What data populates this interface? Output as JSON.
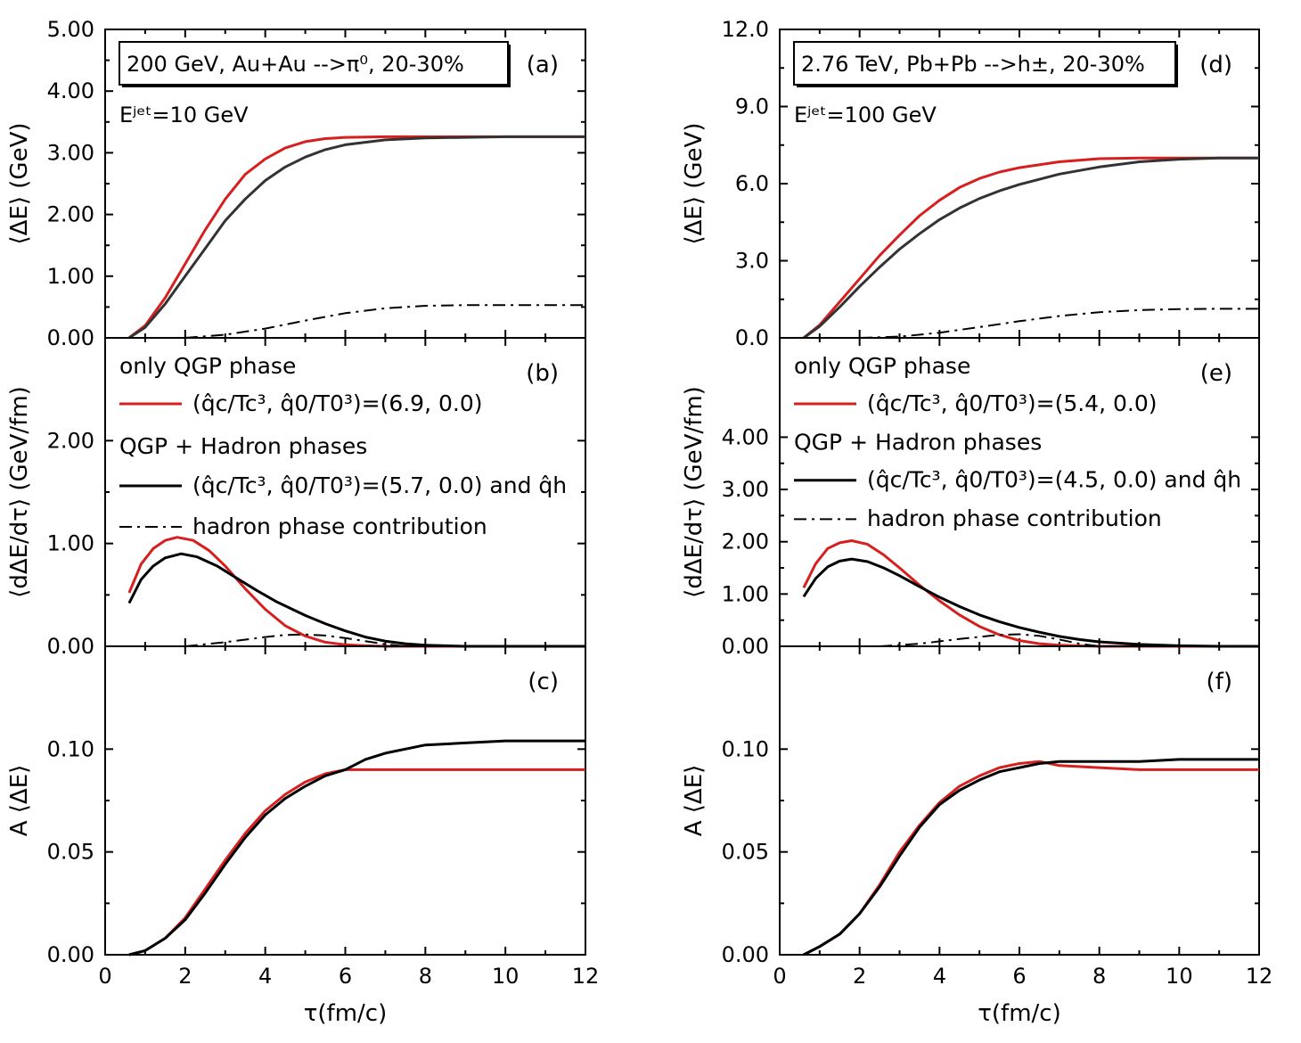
{
  "colors": {
    "red": "#d62020",
    "black": "#000000",
    "dark": "#333333"
  },
  "chart_data": [
    {
      "panel": "(a)",
      "type": "line",
      "column": "left",
      "row": 0,
      "ylabel": "⟨ΔE⟩ (GeV)",
      "ylim": [
        0,
        5
      ],
      "yticks": [
        0,
        1,
        2,
        3,
        4,
        5
      ],
      "ytick_labels": [
        "0.00",
        "1.00",
        "2.00",
        "3.00",
        "4.00",
        "5.00"
      ],
      "xlim": [
        0,
        12
      ],
      "box_text": "200 GeV, Au+Au -->π⁰, 20-30%",
      "note_text": "Eʲᵉᵗ=10 GeV",
      "series": [
        {
          "name": "only QGP phase",
          "color": "red",
          "style": "solid",
          "x": [
            0.6,
            1,
            1.5,
            2,
            2.5,
            3,
            3.5,
            4,
            4.5,
            5,
            5.5,
            6,
            7,
            8,
            9,
            10,
            11,
            12
          ],
          "y": [
            0,
            0.2,
            0.65,
            1.2,
            1.75,
            2.25,
            2.65,
            2.9,
            3.08,
            3.18,
            3.23,
            3.25,
            3.26,
            3.26,
            3.26,
            3.26,
            3.26,
            3.26
          ]
        },
        {
          "name": "QGP + Hadron phases",
          "color": "dark",
          "style": "solid",
          "x": [
            0.6,
            1,
            1.5,
            2,
            2.5,
            3,
            3.5,
            4,
            4.5,
            5,
            5.5,
            6,
            7,
            8,
            9,
            10,
            11,
            12
          ],
          "y": [
            0,
            0.17,
            0.55,
            1.0,
            1.45,
            1.9,
            2.25,
            2.55,
            2.77,
            2.93,
            3.05,
            3.13,
            3.21,
            3.24,
            3.25,
            3.26,
            3.26,
            3.26
          ]
        },
        {
          "name": "hadron phase contribution",
          "color": "black",
          "style": "dashdot",
          "x": [
            2,
            3,
            4,
            5,
            6,
            7,
            8,
            9,
            10,
            11,
            12
          ],
          "y": [
            0,
            0.05,
            0.15,
            0.28,
            0.4,
            0.48,
            0.52,
            0.53,
            0.53,
            0.53,
            0.53
          ]
        }
      ]
    },
    {
      "panel": "(b)",
      "type": "line",
      "column": "left",
      "row": 1,
      "ylabel": "⟨dΔE/dτ⟩ (GeV/fm)",
      "ylim": [
        0,
        3
      ],
      "yticks": [
        0,
        1,
        2
      ],
      "ytick_labels": [
        "0.00",
        "1.00",
        "2.00"
      ],
      "xlim": [
        0,
        12
      ],
      "legend": {
        "group1": "only QGP phase",
        "entry1": "(q̂c/Tc³, q̂0/T0³)=(6.9, 0.0)",
        "group2": "QGP + Hadron phases",
        "entry2": "(q̂c/Tc³, q̂0/T0³)=(5.7, 0.0) and q̂h",
        "entry3": "hadron phase contribution"
      },
      "series": [
        {
          "name": "only QGP phase",
          "color": "red",
          "style": "solid",
          "x": [
            0.6,
            0.9,
            1.2,
            1.5,
            1.8,
            2.2,
            2.6,
            3,
            3.5,
            4,
            4.5,
            5,
            5.5,
            6,
            6.5,
            7,
            12
          ],
          "y": [
            0.52,
            0.8,
            0.95,
            1.03,
            1.06,
            1.03,
            0.93,
            0.78,
            0.56,
            0.36,
            0.2,
            0.1,
            0.04,
            0.015,
            0.005,
            0,
            0
          ]
        },
        {
          "name": "QGP + Hadron phases",
          "color": "black",
          "style": "solid",
          "x": [
            0.6,
            0.9,
            1.2,
            1.5,
            1.9,
            2.3,
            2.8,
            3.3,
            3.8,
            4.3,
            5,
            5.5,
            6,
            6.5,
            7,
            7.5,
            8,
            9,
            12
          ],
          "y": [
            0.42,
            0.65,
            0.78,
            0.86,
            0.9,
            0.87,
            0.78,
            0.66,
            0.54,
            0.43,
            0.3,
            0.22,
            0.15,
            0.09,
            0.05,
            0.025,
            0.01,
            0,
            0
          ]
        },
        {
          "name": "hadron phase contribution",
          "color": "black",
          "style": "dashdot",
          "x": [
            2,
            3,
            4,
            4.5,
            5,
            5.5,
            6,
            6.5,
            7,
            7.5
          ],
          "y": [
            0,
            0.04,
            0.09,
            0.11,
            0.115,
            0.105,
            0.08,
            0.05,
            0.02,
            0
          ]
        }
      ]
    },
    {
      "panel": "(c)",
      "type": "line",
      "column": "left",
      "row": 2,
      "ylabel": "A ⟨ΔE⟩",
      "ylim": [
        0,
        0.15
      ],
      "yticks": [
        0,
        0.05,
        0.1
      ],
      "ytick_labels": [
        "0.00",
        "0.05",
        "0.10"
      ],
      "xlim": [
        0,
        12
      ],
      "xlabel": "τ(fm/c)",
      "xticks": [
        0,
        2,
        4,
        6,
        8,
        10,
        12
      ],
      "xtick_labels": [
        "0",
        "2",
        "4",
        "6",
        "8",
        "10",
        "12"
      ],
      "series": [
        {
          "name": "only QGP phase",
          "color": "red",
          "style": "solid",
          "x": [
            0.6,
            1,
            1.5,
            2,
            2.5,
            3,
            3.5,
            4,
            4.5,
            5,
            5.5,
            6,
            7,
            8,
            9,
            10,
            11,
            12
          ],
          "y": [
            0,
            0.002,
            0.008,
            0.018,
            0.032,
            0.046,
            0.059,
            0.07,
            0.078,
            0.084,
            0.088,
            0.09,
            0.09,
            0.09,
            0.09,
            0.09,
            0.09,
            0.09
          ]
        },
        {
          "name": "QGP + Hadron phases",
          "color": "black",
          "style": "solid",
          "x": [
            0.6,
            1,
            1.5,
            2,
            2.5,
            3,
            3.5,
            4,
            4.5,
            5,
            5.5,
            6,
            6.5,
            7,
            8,
            9,
            10,
            11,
            12
          ],
          "y": [
            0,
            0.002,
            0.008,
            0.017,
            0.03,
            0.044,
            0.057,
            0.068,
            0.076,
            0.082,
            0.087,
            0.09,
            0.095,
            0.098,
            0.102,
            0.103,
            0.104,
            0.104,
            0.104
          ]
        }
      ]
    },
    {
      "panel": "(d)",
      "type": "line",
      "column": "right",
      "row": 0,
      "ylabel": "⟨ΔE⟩ (GeV)",
      "ylim": [
        0,
        12
      ],
      "yticks": [
        0,
        3,
        6,
        9,
        12
      ],
      "ytick_labels": [
        "0.0",
        "3.0",
        "6.0",
        "9.0",
        "12.0"
      ],
      "xlim": [
        0,
        12
      ],
      "box_text": "2.76 TeV, Pb+Pb -->h±, 20-30%",
      "note_text": "Eʲᵉᵗ=100 GeV",
      "series": [
        {
          "name": "only QGP phase",
          "color": "red",
          "style": "solid",
          "x": [
            0.6,
            1,
            1.5,
            2,
            2.5,
            3,
            3.5,
            4,
            4.5,
            5,
            5.5,
            6,
            7,
            8,
            9,
            10,
            11,
            12
          ],
          "y": [
            0,
            0.5,
            1.4,
            2.3,
            3.2,
            4.0,
            4.75,
            5.35,
            5.85,
            6.2,
            6.45,
            6.62,
            6.85,
            6.97,
            7.0,
            7.0,
            7.0,
            7.0
          ]
        },
        {
          "name": "QGP + Hadron phases",
          "color": "dark",
          "style": "solid",
          "x": [
            0.6,
            1,
            1.5,
            2,
            2.5,
            3,
            3.5,
            4,
            4.5,
            5,
            5.5,
            6,
            7,
            8,
            9,
            10,
            11,
            12
          ],
          "y": [
            0,
            0.45,
            1.2,
            2.0,
            2.75,
            3.45,
            4.05,
            4.6,
            5.05,
            5.42,
            5.72,
            5.97,
            6.37,
            6.65,
            6.85,
            6.95,
            7.0,
            7.0
          ]
        },
        {
          "name": "hadron phase contribution",
          "color": "black",
          "style": "dashdot",
          "x": [
            2,
            3,
            4,
            5,
            6,
            7,
            8,
            9,
            10,
            11,
            12
          ],
          "y": [
            0,
            0.05,
            0.2,
            0.42,
            0.65,
            0.85,
            1.0,
            1.08,
            1.12,
            1.13,
            1.13
          ]
        }
      ]
    },
    {
      "panel": "(e)",
      "type": "line",
      "column": "right",
      "row": 1,
      "ylabel": "⟨dΔE/dτ⟩ (GeV/fm)",
      "ylim": [
        0,
        5.9
      ],
      "yticks": [
        0,
        1,
        2,
        3,
        4
      ],
      "ytick_labels": [
        "0.00",
        "1.00",
        "2.00",
        "3.00",
        "4.00"
      ],
      "xlim": [
        0,
        12
      ],
      "legend": {
        "group1": "only QGP phase",
        "entry1": "(q̂c/Tc³, q̂0/T0³)=(5.4, 0.0)",
        "group2": "QGP + Hadron phases",
        "entry2": "(q̂c/Tc³, q̂0/T0³)=(4.5, 0.0) and q̂h",
        "entry3": "hadron phase contribution"
      },
      "series": [
        {
          "name": "only QGP phase",
          "color": "red",
          "style": "solid",
          "x": [
            0.6,
            0.9,
            1.2,
            1.5,
            1.8,
            2.2,
            2.6,
            3,
            3.5,
            4,
            4.5,
            5,
            5.5,
            6,
            6.5,
            7,
            7.5,
            8,
            12
          ],
          "y": [
            1.12,
            1.58,
            1.87,
            1.98,
            2.02,
            1.95,
            1.75,
            1.5,
            1.17,
            0.87,
            0.6,
            0.38,
            0.22,
            0.11,
            0.05,
            0.02,
            0.008,
            0,
            0
          ]
        },
        {
          "name": "QGP + Hadron phases",
          "color": "black",
          "style": "solid",
          "x": [
            0.6,
            0.9,
            1.2,
            1.5,
            1.8,
            2.2,
            2.6,
            3,
            3.5,
            4,
            4.5,
            5,
            5.5,
            6,
            6.5,
            7,
            7.5,
            8,
            9,
            10,
            11,
            12
          ],
          "y": [
            0.95,
            1.3,
            1.52,
            1.63,
            1.67,
            1.62,
            1.5,
            1.35,
            1.14,
            0.94,
            0.76,
            0.6,
            0.47,
            0.36,
            0.27,
            0.19,
            0.13,
            0.085,
            0.035,
            0.01,
            0,
            0
          ]
        },
        {
          "name": "hadron phase contribution",
          "color": "black",
          "style": "dashdot",
          "x": [
            2.5,
            3.5,
            4.5,
            5.5,
            6,
            6.5,
            7,
            7.5,
            8
          ],
          "y": [
            0,
            0.05,
            0.14,
            0.22,
            0.23,
            0.2,
            0.13,
            0.05,
            0
          ]
        }
      ]
    },
    {
      "panel": "(f)",
      "type": "line",
      "column": "right",
      "row": 2,
      "ylabel": "A ⟨ΔE⟩",
      "ylim": [
        0,
        0.15
      ],
      "yticks": [
        0,
        0.05,
        0.1
      ],
      "ytick_labels": [
        "0.00",
        "0.05",
        "0.10"
      ],
      "xlim": [
        0,
        12
      ],
      "xlabel": "τ(fm/c)",
      "xticks": [
        0,
        2,
        4,
        6,
        8,
        10,
        12
      ],
      "xtick_labels": [
        "0",
        "2",
        "4",
        "6",
        "8",
        "10",
        "12"
      ],
      "series": [
        {
          "name": "only QGP phase",
          "color": "red",
          "style": "solid",
          "x": [
            0.6,
            1,
            1.5,
            2,
            2.5,
            3,
            3.5,
            4,
            4.5,
            5,
            5.5,
            6,
            6.5,
            7,
            8,
            9,
            10,
            11,
            12
          ],
          "y": [
            0,
            0.004,
            0.01,
            0.02,
            0.034,
            0.05,
            0.063,
            0.074,
            0.082,
            0.087,
            0.091,
            0.093,
            0.094,
            0.092,
            0.091,
            0.09,
            0.09,
            0.09,
            0.09
          ]
        },
        {
          "name": "QGP + Hadron phases",
          "color": "black",
          "style": "solid",
          "x": [
            0.6,
            1,
            1.5,
            2,
            2.5,
            3,
            3.5,
            4,
            4.5,
            5,
            5.5,
            6,
            6.5,
            7,
            8,
            9,
            10,
            11,
            12
          ],
          "y": [
            0,
            0.004,
            0.01,
            0.02,
            0.033,
            0.048,
            0.062,
            0.073,
            0.08,
            0.085,
            0.089,
            0.091,
            0.093,
            0.094,
            0.094,
            0.094,
            0.095,
            0.095,
            0.095
          ]
        }
      ]
    }
  ]
}
